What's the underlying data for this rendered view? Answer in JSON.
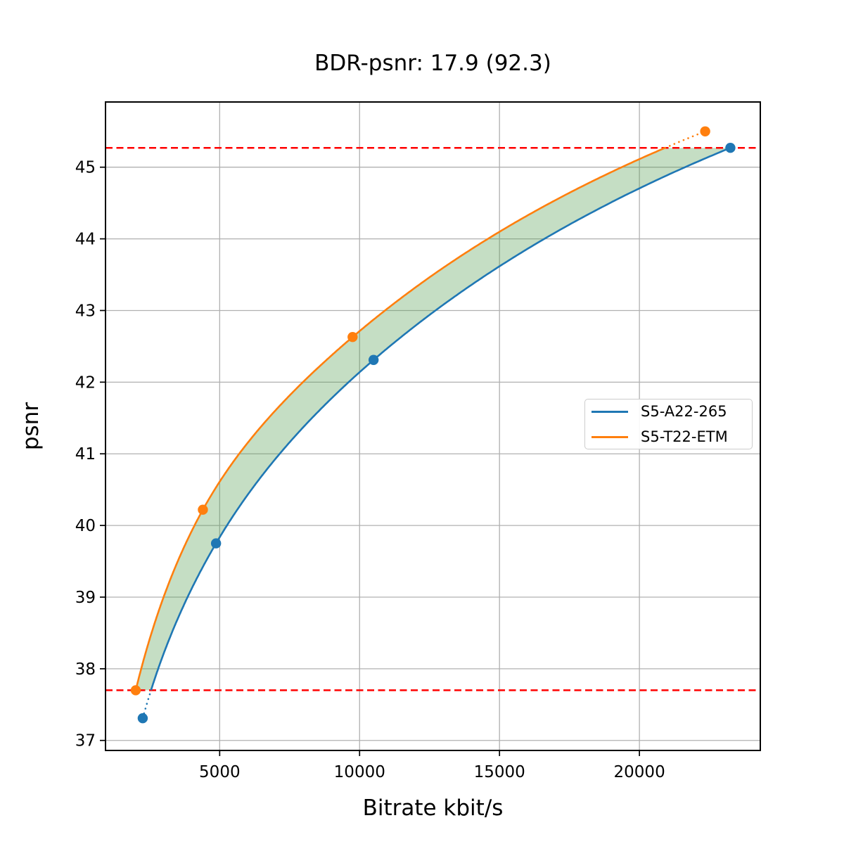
{
  "chart_data": {
    "type": "line",
    "title": "BDR-psnr: 17.9 (92.3)",
    "xlabel": "Bitrate kbit/s",
    "ylabel": "psnr",
    "xlim": [
      920,
      24320
    ],
    "ylim": [
      36.86,
      45.91
    ],
    "x_ticks": [
      5000,
      10000,
      15000,
      20000
    ],
    "y_ticks": [
      37,
      38,
      39,
      40,
      41,
      42,
      43,
      44,
      45
    ],
    "grid": true,
    "grid_color": "#b0b0b0",
    "axes_color": "#000000",
    "legend_position": "center-right",
    "series": [
      {
        "name": "S5-A22-265",
        "color": "#1f77b4",
        "marker": "circle",
        "points": [
          [
            2250,
            37.31
          ],
          [
            4870,
            39.75
          ],
          [
            10500,
            42.31
          ],
          [
            23250,
            45.27
          ]
        ],
        "dotted_extrapolation": "below_lower_ref"
      },
      {
        "name": "S5-T22-ETM",
        "color": "#ff7f0e",
        "marker": "circle",
        "points": [
          [
            2000,
            37.7
          ],
          [
            4400,
            40.22
          ],
          [
            9750,
            42.63
          ],
          [
            22350,
            45.5
          ]
        ],
        "dotted_extrapolation": "above_upper_ref"
      }
    ],
    "reference_lines": {
      "values": [
        37.7,
        45.27
      ],
      "color": "#ff0000",
      "style": "dashed"
    },
    "fill_between": {
      "color": "#5aa055",
      "opacity": 0.35,
      "clip_y": [
        37.7,
        45.27
      ]
    }
  }
}
